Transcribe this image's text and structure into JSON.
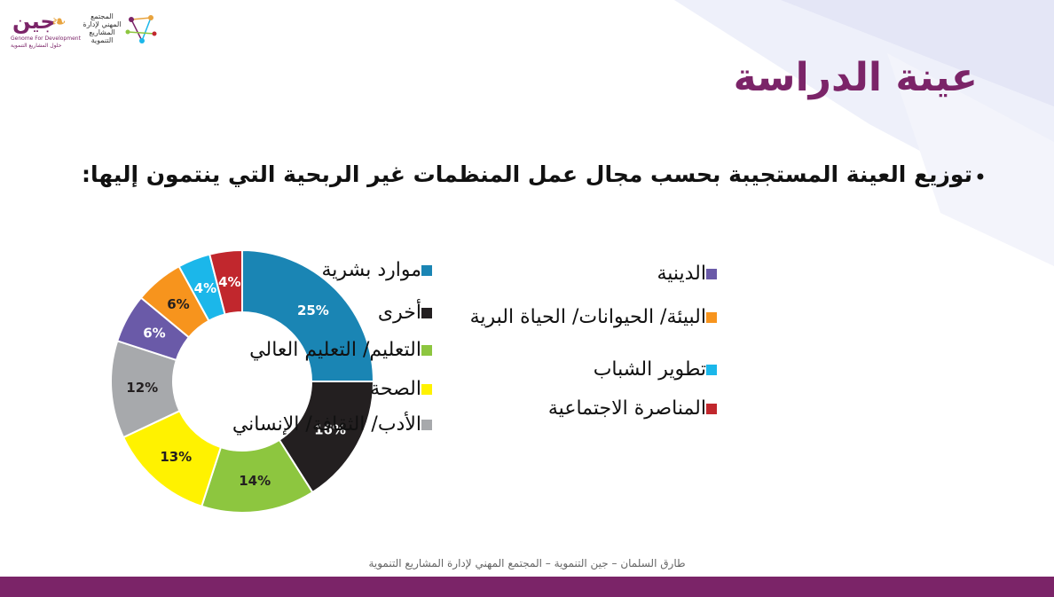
{
  "logos": {
    "jeen_word": "جين",
    "jeen_sub": "Genome For Development",
    "jeen_sub2": "حلول المشاريع التنموية",
    "community_text": "المجتمع المهني لإدارة المشاريع التنموية"
  },
  "slide": {
    "title": "عينة الدراسة",
    "bullet": "توزيع العينة المستجيبة بحسب مجال عمل المنظمات غير الربحية التي ينتمون إليها:",
    "footer": "طارق السلمان – جين التنموية – المجتمع المهني لإدارة المشاريع التنموية"
  },
  "colors": {
    "brand": "#7b2468",
    "footer_bar": "#7b2468"
  },
  "chart_data": {
    "type": "pie",
    "subtype": "donut",
    "categories": [
      "موارد بشرية",
      "أخرى",
      "التعليم/ التعليم العالي",
      "الصحة",
      "الأدب/ الثقافة/ الإنساني",
      "الدينية",
      "البيئة/ الحيوانات/ الحياة البرية",
      "تطوير الشباب",
      "المناصرة الاجتماعية"
    ],
    "values": [
      25,
      16,
      14,
      13,
      12,
      6,
      6,
      4,
      4
    ],
    "labels": [
      "25%",
      "16%",
      "14%",
      "13%",
      "12%",
      "6%",
      "6%",
      "4%",
      "4%"
    ],
    "colors": [
      "#1a85b4",
      "#231f20",
      "#8dc63f",
      "#fff200",
      "#a7a9ac",
      "#6a5aa8",
      "#f7941d",
      "#1bb7ea",
      "#c1272d"
    ],
    "label_colors": [
      "#ffffff",
      "#ffffff",
      "#231f20",
      "#231f20",
      "#231f20",
      "#ffffff",
      "#231f20",
      "#ffffff",
      "#ffffff"
    ],
    "legend_position": "right"
  }
}
